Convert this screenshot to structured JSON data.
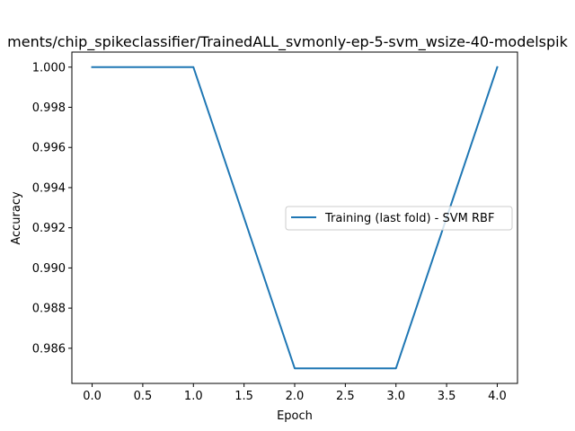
{
  "chart_data": {
    "type": "line",
    "title": "ments/chip_spikeclassifier/TrainedALL_svmonly-ep-5-svm_wsize-40-modelspik",
    "xlabel": "Epoch",
    "ylabel": "Accuracy",
    "x": [
      0,
      1,
      2,
      3,
      4
    ],
    "series": [
      {
        "name": "Training (last fold) - SVM RBF",
        "values": [
          1.0,
          1.0,
          0.985,
          0.985,
          1.0
        ],
        "color": "#1f77b4"
      }
    ],
    "xlim": [
      -0.2,
      4.2
    ],
    "ylim": [
      0.98425,
      1.00075
    ],
    "xticks": [
      0.0,
      0.5,
      1.0,
      1.5,
      2.0,
      2.5,
      3.0,
      3.5,
      4.0
    ],
    "xtick_labels": [
      "0.0",
      "0.5",
      "1.0",
      "1.5",
      "2.0",
      "2.5",
      "3.0",
      "3.5",
      "4.0"
    ],
    "yticks": [
      0.986,
      0.988,
      0.99,
      0.992,
      0.994,
      0.996,
      0.998,
      1.0
    ],
    "ytick_labels": [
      "0.986",
      "0.988",
      "0.990",
      "0.992",
      "0.994",
      "0.996",
      "0.998",
      "1.000"
    ],
    "grid": false,
    "legend_position": "center-right"
  }
}
